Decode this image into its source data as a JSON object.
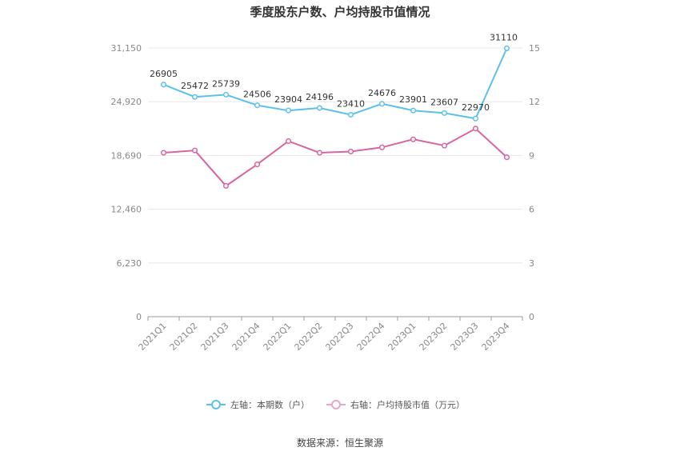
{
  "chart_data": {
    "type": "line",
    "title": "季度股东户数、户均持股市值情况",
    "categories": [
      "2021Q1",
      "2021Q2",
      "2021Q3",
      "2021Q4",
      "2022Q1",
      "2022Q2",
      "2022Q3",
      "2022Q4",
      "2023Q1",
      "2023Q2",
      "2023Q3",
      "2023Q4"
    ],
    "left_axis": {
      "ylim": [
        0,
        31150
      ],
      "ticks": [
        0,
        6230,
        12460,
        18690,
        24920,
        31150
      ],
      "tick_labels": [
        "0",
        "6,230",
        "12,460",
        "18,690",
        "24,920",
        "31,150"
      ]
    },
    "right_axis": {
      "ylim": [
        0,
        15
      ],
      "ticks": [
        0,
        3,
        6,
        9,
        12,
        15
      ],
      "tick_labels": [
        "0",
        "3",
        "6",
        "9",
        "12",
        "15"
      ]
    },
    "series": [
      {
        "name": "左轴：本期数（户）",
        "axis": "left",
        "color": "#5bc0eb",
        "values": [
          26905,
          25472,
          25739,
          24506,
          23904,
          24196,
          23410,
          24676,
          23901,
          23607,
          22970,
          31110
        ],
        "labels": [
          "26905",
          "25472",
          "25739",
          "24506",
          "23904",
          "24196",
          "23410",
          "24676",
          "23901",
          "23607",
          "22970",
          "31110"
        ]
      },
      {
        "name": "右轴：户均持股市值（万元）",
        "axis": "right",
        "color": "#d9649f",
        "values": [
          9.15,
          9.28,
          7.3,
          8.5,
          9.8,
          9.15,
          9.22,
          9.45,
          9.9,
          9.55,
          10.5,
          8.9
        ]
      }
    ],
    "grid": true,
    "legend_position": "bottom"
  },
  "source": "数据来源：恒生聚源"
}
